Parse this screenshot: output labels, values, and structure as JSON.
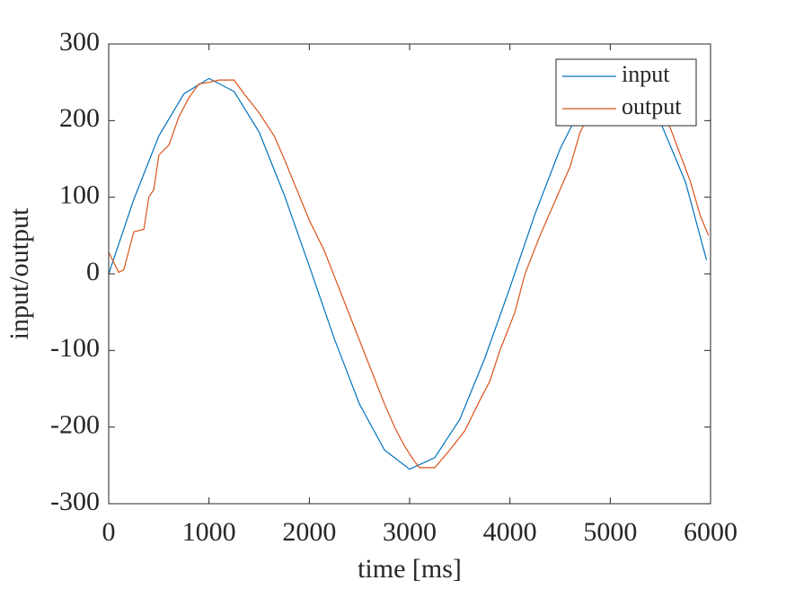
{
  "chart_data": {
    "type": "line",
    "xlabel": "time [ms]",
    "ylabel": "input/output",
    "xlim": [
      0,
      6000
    ],
    "xticks": [
      0,
      1000,
      2000,
      3000,
      4000,
      5000,
      6000
    ],
    "ylim": [
      -300,
      300
    ],
    "yticks": [
      -300,
      -200,
      -100,
      0,
      100,
      200,
      300
    ],
    "legend": "upper right",
    "box": true,
    "series": [
      {
        "name": "input",
        "color": "#0072bd",
        "x": [
          0,
          250,
          500,
          750,
          1000,
          1250,
          1500,
          1750,
          2000,
          2250,
          2500,
          2750,
          3000,
          3250,
          3500,
          3750,
          4000,
          4250,
          4500,
          4750,
          5000,
          5250,
          5500,
          5750,
          5960
        ],
        "values": [
          0,
          97,
          180,
          235,
          255,
          238,
          185,
          103,
          10,
          -85,
          -170,
          -230,
          -255,
          -240,
          -190,
          -110,
          -18,
          78,
          163,
          228,
          255,
          243,
          198,
          120,
          18
        ]
      },
      {
        "name": "output",
        "color": "#d95319",
        "x": [
          0,
          100,
          150,
          250,
          350,
          400,
          450,
          500,
          600,
          700,
          800,
          900,
          1000,
          1100,
          1250,
          1350,
          1500,
          1650,
          1750,
          1850,
          2000,
          2150,
          2300,
          2450,
          2600,
          2750,
          2850,
          2950,
          3050,
          3100,
          3250,
          3400,
          3550,
          3700,
          3800,
          3900,
          4050,
          4150,
          4300,
          4400,
          4500,
          4600,
          4700,
          4800,
          4900,
          5000,
          5150,
          5300,
          5400,
          5500,
          5600,
          5700,
          5800,
          5900,
          5980
        ],
        "values": [
          28,
          2,
          5,
          55,
          58,
          100,
          110,
          155,
          168,
          205,
          230,
          248,
          250,
          253,
          253,
          235,
          210,
          180,
          150,
          118,
          70,
          30,
          -20,
          -70,
          -120,
          -170,
          -200,
          -225,
          -245,
          -253,
          -253,
          -230,
          -205,
          -165,
          -140,
          -100,
          -50,
          0,
          50,
          80,
          110,
          140,
          185,
          210,
          240,
          253,
          253,
          245,
          230,
          215,
          190,
          155,
          120,
          75,
          50
        ]
      }
    ]
  }
}
